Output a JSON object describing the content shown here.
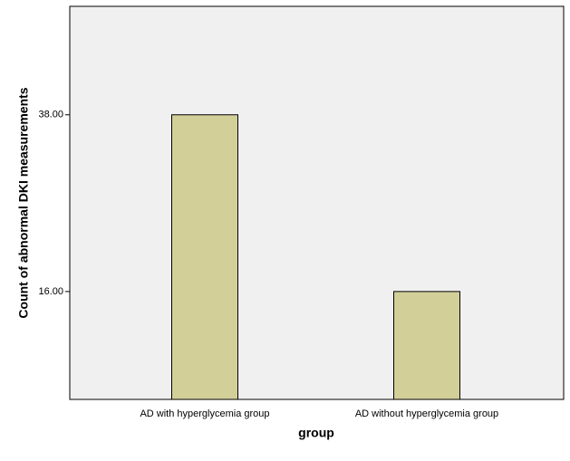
{
  "chart_data": {
    "type": "bar",
    "x_label": "group",
    "y_label": "Count of abnormal DKI measurements",
    "categories": [
      "AD with hyperglycemia group",
      "AD without hyperglycemia group"
    ],
    "values": [
      38,
      16
    ],
    "color": "#d3cf99",
    "ylim": [
      2.57,
      51.5
    ],
    "yticks": [
      {
        "value": 16,
        "label": "16.00"
      },
      {
        "value": 38,
        "label": "38.00"
      }
    ],
    "grid": false
  }
}
